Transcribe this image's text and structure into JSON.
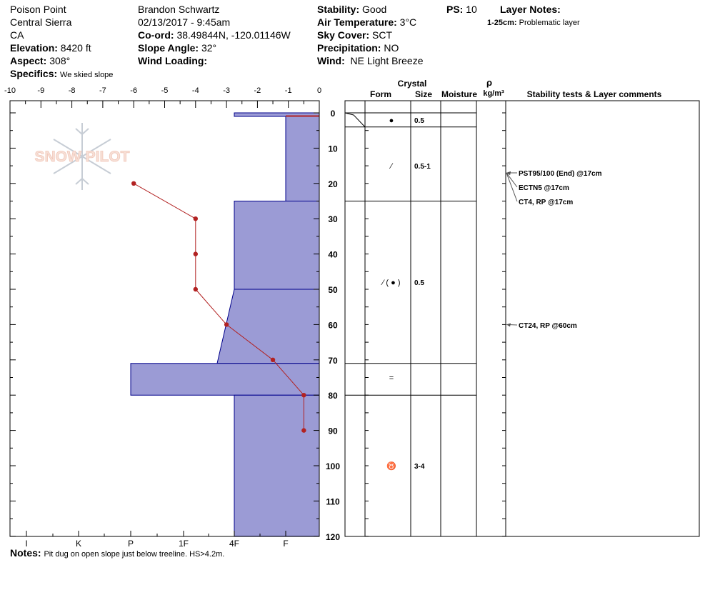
{
  "header": {
    "location": "Poison Point",
    "range": "Central Sierra",
    "state": "CA",
    "elevation_label": "Elevation:",
    "elevation": "8420 ft",
    "aspect_label": "Aspect:",
    "aspect": "308°",
    "specifics_label": "Specifics:",
    "specifics": "We skied slope",
    "observer": "Brandon Schwartz",
    "datetime": "02/13/2017 - 9:45am",
    "coord_label": "Co-ord:",
    "coord": "38.49844N, -120.01146W",
    "slope_label": "Slope Angle:",
    "slope": "32°",
    "wind_loading_label": "Wind Loading:",
    "wind_loading": "",
    "stability_label": "Stability:",
    "stability": "Good",
    "air_temp_label": "Air Temperature:",
    "air_temp": "3°C",
    "sky_label": "Sky Cover:",
    "sky": "SCT",
    "precip_label": "Precipitation:",
    "precip": "NO",
    "wind_label": "Wind:",
    "wind": "NE Light Breeze",
    "ps_label": "PS:",
    "ps": "10",
    "layer_notes_label": "Layer Notes:",
    "layer_note_range": "1-25cm:",
    "layer_note_text": "Problematic layer"
  },
  "notes_label": "Notes:",
  "notes": "Pit dug on open slope just below treeline. HS>4.2m.",
  "logo_text": "SNOW PILOT",
  "colors": {
    "hardness_fill": "#9b9bd5",
    "hardness_stroke": "#00008b",
    "temp": "#b22222"
  },
  "chart_data": {
    "type": "snow-profile",
    "temperature_axis": {
      "ticks": [
        "-10",
        "-9",
        "-8",
        "-7",
        "-6",
        "-5",
        "-4",
        "-3",
        "-2",
        "-1",
        "0"
      ],
      "range": [
        -10,
        0
      ]
    },
    "hardness_axis": {
      "ticks": [
        "I",
        "K",
        "P",
        "1F",
        "4F",
        "F"
      ]
    },
    "depth_axis": {
      "ticks": [
        "0",
        "10",
        "20",
        "30",
        "40",
        "50",
        "60",
        "70",
        "80",
        "90",
        "100",
        "110",
        "120"
      ],
      "range": [
        0,
        120
      ]
    },
    "hardness_layers": [
      {
        "top": 0,
        "bottom": 1,
        "hardness": "4F"
      },
      {
        "top": 1,
        "bottom": 25,
        "hardness": "F+"
      },
      {
        "top": 25,
        "bottom": 50,
        "hardness": "4F"
      },
      {
        "top": 50,
        "bottom": 71,
        "hardness": "4F-"
      },
      {
        "top": 71,
        "bottom": 80,
        "hardness": "P-"
      },
      {
        "top": 80,
        "bottom": 120,
        "hardness": "4F"
      }
    ],
    "temperature_profile": {
      "depth": [
        20,
        30,
        40,
        50,
        60,
        70,
        80,
        90
      ],
      "temp": [
        -6,
        -4,
        -4,
        -4,
        -3,
        -1.5,
        -0.5,
        -0.5
      ]
    },
    "table_headers": {
      "crystal": "Crystal",
      "form": "Form",
      "size": "Size",
      "moisture": "Moisture",
      "rho": "ρ",
      "density_unit": "kg/m³",
      "stability": "Stability tests & Layer comments"
    },
    "layer_boundaries": [
      0,
      4,
      25,
      71,
      80
    ],
    "crystal_rows": [
      {
        "depth": 2,
        "form": "●",
        "size": "0.5"
      },
      {
        "depth": 15,
        "form": "⁄",
        "size": "0.5-1"
      },
      {
        "depth": 48,
        "form": "⁄ ( ● )",
        "size": "0.5"
      },
      {
        "depth": 75,
        "form": "=",
        "size": ""
      },
      {
        "depth": 100,
        "form": "♉",
        "size": "3-4"
      }
    ],
    "stability_tests": [
      {
        "depth": 17,
        "label": "PST95/100 (End) @17cm"
      },
      {
        "depth": 17,
        "label": "ECTN5 @17cm"
      },
      {
        "depth": 17,
        "label": "CT4, RP @17cm"
      },
      {
        "depth": 60,
        "label": "CT24, RP @60cm"
      }
    ]
  }
}
